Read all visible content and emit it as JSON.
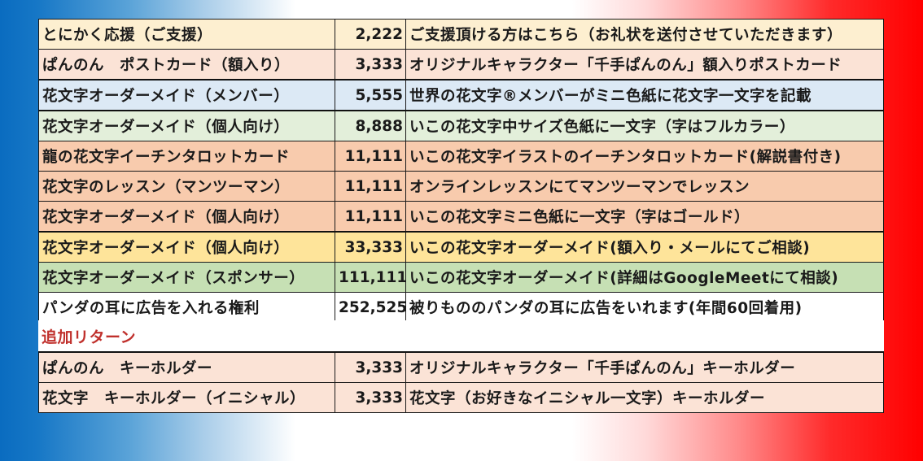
{
  "colors": {
    "yellow_light": "#fdefd0",
    "peach": "#fbe3d6",
    "blue_light": "#dce9f5",
    "green_light": "#e3efda",
    "orange": "#f8cbad",
    "yellow": "#fee49a",
    "green": "#c6e0b4",
    "white": "#ffffff",
    "section_red": "#c0302c"
  },
  "main_rows": [
    {
      "name": "とにかく応援（ご支援）",
      "price": "2,222",
      "desc": "ご支援頂ける方はこちら（お礼状を送付させていただきます）",
      "bg": "#fdefd0"
    },
    {
      "name": "ぱんのん　ポストカード（額入り）",
      "price": "3,333",
      "desc": "オリジナルキャラクター「千手ぱんのん」額入りポストカード",
      "bg": "#fbe3d6"
    },
    {
      "name": "花文字オーダーメイド（メンバー）",
      "price": "5,555",
      "desc": "世界の花文字®メンバーがミニ色紙に花文字一文字を記載",
      "bg": "#dce9f5"
    },
    {
      "name": "花文字オーダーメイド（個人向け）",
      "price": "8,888",
      "desc": "いこの花文字中サイズ色紙に一文字（字はフルカラー）",
      "bg": "#e3efda"
    },
    {
      "name": "龍の花文字イーチンタロットカード",
      "price": "11,111",
      "desc": "いこの花文字イラストのイーチンタロットカード(解説書付き)",
      "bg": "#f8cbad"
    },
    {
      "name": "花文字のレッスン（マンツーマン）",
      "price": "11,111",
      "desc": "オンラインレッスンにてマンツーマンでレッスン",
      "bg": "#f8cbad"
    },
    {
      "name": "花文字オーダーメイド（個人向け）",
      "price": "11,111",
      "desc": "いこの花文字ミニ色紙に一文字（字はゴールド）",
      "bg": "#f8cbad"
    },
    {
      "name": "花文字オーダーメイド（個人向け）",
      "price": "33,333",
      "desc": "いこの花文字オーダーメイド(額入り・メールにてご相談)",
      "bg": "#fee49a"
    },
    {
      "name": "花文字オーダーメイド（スポンサー）",
      "price": "111,111",
      "desc": "いこの花文字オーダーメイド(詳細はGoogleMeetにて相談)",
      "bg": "#c6e0b4"
    },
    {
      "name": "パンダの耳に広告を入れる権利",
      "price": "252,525",
      "desc": "被りもののパンダの耳に広告をいれます(年間60回着用)",
      "bg": "#ffffff"
    }
  ],
  "section": {
    "title": "追加リターン"
  },
  "extra_rows": [
    {
      "name": "ぱんのん　キーホルダー",
      "price": "3,333",
      "desc": "オリジナルキャラクター「千手ぱんのん」キーホルダー",
      "bg": "#fbe3d6"
    },
    {
      "name": "花文字　キーホルダー（イニシャル）",
      "price": "3,333",
      "desc": "花文字（お好きなイニシャル一文字）キーホルダー",
      "bg": "#fbe3d6"
    }
  ]
}
